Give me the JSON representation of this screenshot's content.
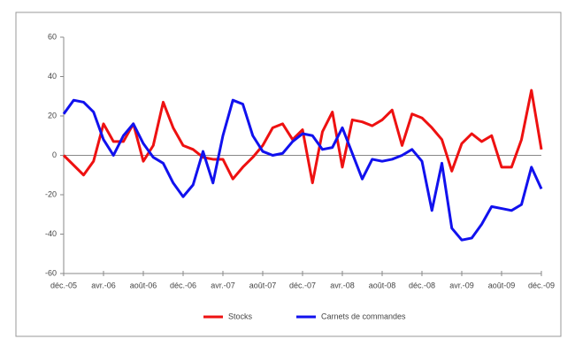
{
  "chart_data": {
    "type": "line",
    "categories": [
      "déc.-05",
      null,
      null,
      null,
      "avr.-06",
      null,
      null,
      null,
      "août-06",
      null,
      null,
      null,
      "déc.-06",
      null,
      null,
      null,
      "avr.-07",
      null,
      null,
      null,
      "août-07",
      null,
      null,
      null,
      "déc.-07",
      null,
      null,
      null,
      "avr.-08",
      null,
      null,
      null,
      "août-08",
      null,
      null,
      null,
      "déc.-08",
      null,
      null,
      null,
      "avr.-09",
      null,
      null,
      null,
      "août-09",
      null,
      null,
      null,
      "déc.-09"
    ],
    "series": [
      {
        "name": "Stocks",
        "color": "#ee1111",
        "values": [
          0,
          -5,
          -10,
          -3,
          16,
          7,
          7,
          16,
          -3,
          5,
          27,
          14,
          5,
          3,
          -1,
          -2,
          -2,
          -12,
          -6,
          -1,
          5,
          14,
          16,
          8,
          13,
          -14,
          12,
          22,
          -6,
          18,
          17,
          15,
          18,
          23,
          5,
          21,
          19,
          14,
          8,
          -8,
          6,
          11,
          7,
          10,
          -6,
          -6,
          8,
          33,
          3
        ]
      },
      {
        "name": "Carnets de commandes",
        "color": "#1111ee",
        "values": [
          21,
          28,
          27,
          22,
          8,
          0,
          10,
          16,
          6,
          -1,
          -4,
          -14,
          -21,
          -15,
          2,
          -14,
          10,
          28,
          26,
          10,
          2,
          0,
          1,
          7,
          11,
          10,
          3,
          4,
          14,
          1,
          -12,
          -2,
          -3,
          -2,
          0,
          3,
          -3,
          -28,
          -4,
          -37,
          -43,
          -42,
          -35,
          -26,
          -27,
          -28,
          -25,
          -6,
          -17
        ]
      }
    ],
    "ylim": [
      -60,
      60
    ],
    "yticks": [
      -60,
      -40,
      -20,
      0,
      20,
      40,
      60
    ],
    "legend": "bottom"
  }
}
